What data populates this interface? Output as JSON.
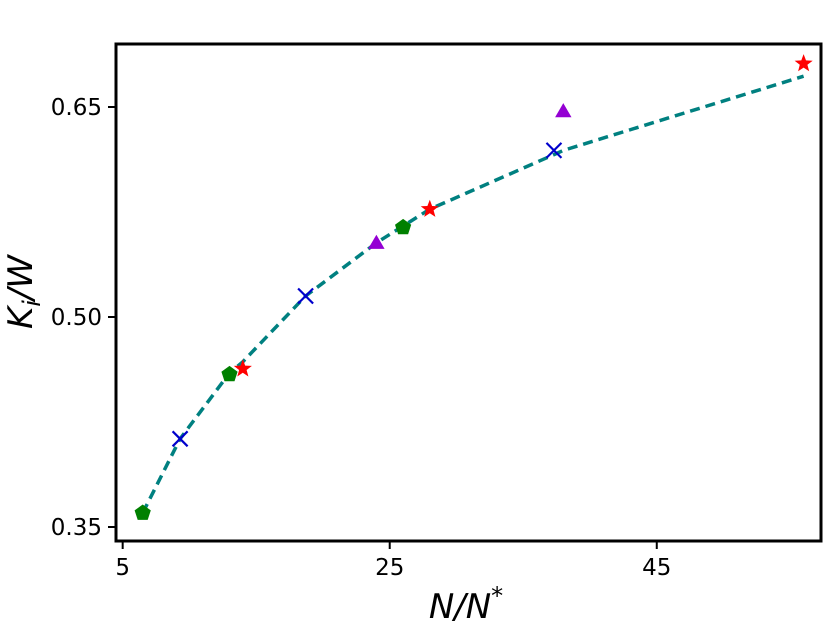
{
  "chart_data": {
    "type": "scatter",
    "xlabel": "N/N",
    "xlabel_sup": "*",
    "ylabel": "K",
    "ylabel_sub": "i",
    "ylabel_suffix": "/W",
    "xlim": [
      4.5,
      57.3
    ],
    "ylim": [
      0.34,
      0.695
    ],
    "xticks": [
      {
        "value": 5,
        "label": "5"
      },
      {
        "value": 25,
        "label": "25"
      },
      {
        "value": 45,
        "label": "45"
      }
    ],
    "yticks": [
      {
        "value": 0.35,
        "label": "0.35"
      },
      {
        "value": 0.5,
        "label": "0.50"
      },
      {
        "value": 0.65,
        "label": "0.65"
      }
    ],
    "grid": false,
    "series": [
      {
        "marker": "star",
        "color": "#ff0000",
        "x": [
          14.0,
          28.0,
          56.0
        ],
        "y": [
          0.463,
          0.577,
          0.681
        ]
      },
      {
        "marker": "x",
        "color": "#0000cc",
        "x": [
          9.3,
          18.7,
          37.3
        ],
        "y": [
          0.413,
          0.515,
          0.619
        ]
      },
      {
        "marker": "triangle",
        "color": "#9400d3",
        "x": [
          24.0,
          38.0
        ],
        "y": [
          0.552,
          0.646
        ]
      },
      {
        "marker": "pentagon",
        "color": "#008000",
        "x": [
          6.5,
          13.0,
          26.0
        ],
        "y": [
          0.36,
          0.459,
          0.564
        ]
      }
    ],
    "fit_line": {
      "style": "dashed",
      "color": "#008080",
      "x": [
        6.5,
        9.3,
        13.0,
        14.0,
        18.7,
        24.0,
        26.0,
        28.0,
        37.3,
        38.0,
        56.0
      ],
      "y": [
        0.36,
        0.413,
        0.46,
        0.468,
        0.515,
        0.553,
        0.565,
        0.577,
        0.616,
        0.619,
        0.672
      ]
    }
  }
}
